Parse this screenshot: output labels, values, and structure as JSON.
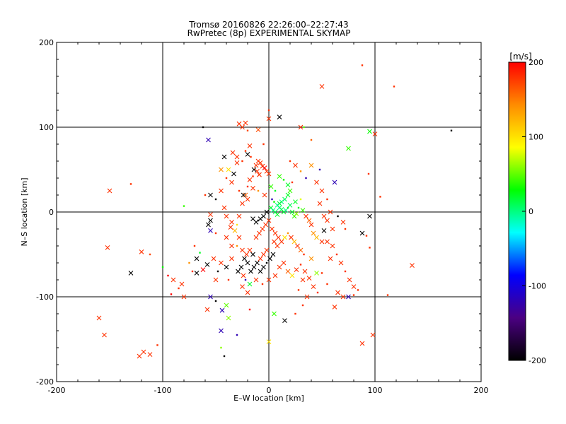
{
  "chart_data": {
    "type": "scatter",
    "title": "Tromsø 20160826 22:26:00–22:27:43",
    "subtitle": "RwPretec (8p) EXPERIMENTAL SKYMAP",
    "xlabel": "E–W location [km]",
    "ylabel": "N–S location [km]",
    "xlim": [
      -200,
      200
    ],
    "ylim": [
      -200,
      200
    ],
    "xticks": [
      -200,
      -100,
      0,
      100,
      200
    ],
    "yticks": [
      -200,
      -100,
      0,
      100,
      200
    ],
    "grid": true,
    "colorbar": {
      "label": "[m/s]",
      "range": [
        -200,
        200
      ],
      "ticks": [
        200,
        100,
        0,
        -100,
        -200
      ],
      "colors": [
        "#000000",
        "#4b0082",
        "#0000ff",
        "#00ffff",
        "#00ff00",
        "#ffff00",
        "#ff8c00",
        "#ff0000"
      ]
    },
    "points": [
      [
        -160,
        -125,
        180,
        "x"
      ],
      [
        -155,
        -145,
        180,
        "x"
      ],
      [
        -150,
        25,
        180,
        "x"
      ],
      [
        -152,
        -42,
        180,
        "x"
      ],
      [
        -130,
        33,
        180,
        "d"
      ],
      [
        -130,
        -72,
        -200,
        "x"
      ],
      [
        -120,
        -47,
        180,
        "x"
      ],
      [
        -118,
        -165,
        180,
        "x"
      ],
      [
        -112,
        -168,
        180,
        "x"
      ],
      [
        -122,
        -170,
        180,
        "x"
      ],
      [
        -105,
        -157,
        180,
        "d"
      ],
      [
        -112,
        -50,
        170,
        "d"
      ],
      [
        -100,
        -65,
        30,
        "d"
      ],
      [
        -95,
        -75,
        200,
        "d"
      ],
      [
        -92,
        -97,
        200,
        "d"
      ],
      [
        -82,
        -85,
        180,
        "x"
      ],
      [
        -80,
        7,
        40,
        "d"
      ],
      [
        -75,
        -60,
        140,
        "d"
      ],
      [
        -72,
        -70,
        180,
        "d"
      ],
      [
        -68,
        -72,
        -200,
        "x"
      ],
      [
        -62,
        100,
        -200,
        "d"
      ],
      [
        -57,
        85,
        -120,
        "x"
      ],
      [
        -55,
        -100,
        -120,
        "x"
      ],
      [
        -50,
        -80,
        180,
        "x"
      ],
      [
        -45,
        -140,
        -120,
        "x"
      ],
      [
        -45,
        -160,
        60,
        "d"
      ],
      [
        -44,
        -116,
        -120,
        "x"
      ],
      [
        -42,
        65,
        -200,
        "x"
      ],
      [
        -40,
        -110,
        50,
        "x"
      ],
      [
        -38,
        -80,
        180,
        "d"
      ],
      [
        -35,
        35,
        180,
        "x"
      ],
      [
        -30,
        -145,
        -120,
        "d"
      ],
      [
        -28,
        104,
        180,
        "x"
      ],
      [
        -25,
        100,
        180,
        "x"
      ],
      [
        -22,
        105,
        180,
        "x"
      ],
      [
        -20,
        96,
        170,
        "d"
      ],
      [
        -10,
        97,
        170,
        "x"
      ],
      [
        -5,
        80,
        180,
        "d"
      ],
      [
        0,
        110,
        180,
        "x"
      ],
      [
        10,
        112,
        -200,
        "x"
      ],
      [
        0,
        120,
        180,
        "d"
      ],
      [
        30,
        100,
        180,
        "x"
      ],
      [
        33,
        100,
        50,
        "d"
      ],
      [
        40,
        85,
        160,
        "d"
      ],
      [
        50,
        148,
        180,
        "x"
      ],
      [
        88,
        173,
        180,
        "d"
      ],
      [
        95,
        95,
        30,
        "x"
      ],
      [
        100,
        92,
        180,
        "x"
      ],
      [
        118,
        148,
        180,
        "d"
      ],
      [
        172,
        96,
        -200,
        "d"
      ],
      [
        40,
        55,
        140,
        "x"
      ],
      [
        48,
        50,
        -120,
        "d"
      ],
      [
        62,
        35,
        -120,
        "x"
      ],
      [
        75,
        75,
        40,
        "x"
      ],
      [
        94,
        45,
        180,
        "d"
      ],
      [
        105,
        18,
        180,
        "d"
      ],
      [
        95,
        -5,
        -200,
        "x"
      ],
      [
        92,
        -28,
        180,
        "d"
      ],
      [
        88,
        -25,
        -200,
        "x"
      ],
      [
        95,
        -42,
        180,
        "d"
      ],
      [
        135,
        -63,
        180,
        "x"
      ],
      [
        112,
        -98,
        180,
        "d"
      ],
      [
        98,
        -145,
        180,
        "x"
      ],
      [
        88,
        -155,
        180,
        "x"
      ],
      [
        70,
        -100,
        180,
        "x"
      ],
      [
        75,
        -100,
        -120,
        "x"
      ],
      [
        80,
        -98,
        180,
        "d"
      ],
      [
        62,
        -112,
        180,
        "x"
      ],
      [
        65,
        -95,
        180,
        "x"
      ],
      [
        55,
        -85,
        180,
        "d"
      ],
      [
        50,
        -72,
        180,
        "d"
      ],
      [
        58,
        -55,
        180,
        "x"
      ],
      [
        55,
        -35,
        180,
        "x"
      ],
      [
        40,
        -55,
        140,
        "x"
      ],
      [
        45,
        -72,
        60,
        "x"
      ],
      [
        32,
        -80,
        180,
        "x"
      ],
      [
        28,
        -92,
        180,
        "d"
      ],
      [
        25,
        -120,
        180,
        "d"
      ],
      [
        15,
        -128,
        -200,
        "x"
      ],
      [
        5,
        -120,
        40,
        "x"
      ],
      [
        0,
        -153,
        100,
        "x"
      ],
      [
        -18,
        -115,
        200,
        "d"
      ],
      [
        -20,
        -95,
        180,
        "x"
      ],
      [
        -22,
        -80,
        -120,
        "d"
      ],
      [
        -18,
        -85,
        20,
        "x"
      ],
      [
        -25,
        -88,
        180,
        "x"
      ],
      [
        -35,
        -55,
        180,
        "x"
      ],
      [
        -35,
        -40,
        180,
        "x"
      ],
      [
        -40,
        -30,
        180,
        "x"
      ],
      [
        -50,
        -25,
        180,
        "d"
      ],
      [
        -55,
        -22,
        -120,
        "x"
      ],
      [
        -55,
        -10,
        -200,
        "x"
      ],
      [
        -57,
        -15,
        -200,
        "x"
      ],
      [
        -55,
        -3,
        180,
        "x"
      ],
      [
        -60,
        20,
        180,
        "d"
      ],
      [
        -55,
        20,
        -200,
        "x"
      ],
      [
        -50,
        15,
        -200,
        "d"
      ],
      [
        -45,
        25,
        180,
        "x"
      ],
      [
        -42,
        5,
        180,
        "x"
      ],
      [
        -40,
        -5,
        180,
        "x"
      ],
      [
        -35,
        -12,
        180,
        "x"
      ],
      [
        -30,
        -15,
        100,
        "d"
      ],
      [
        -28,
        -5,
        180,
        "x"
      ],
      [
        -25,
        10,
        180,
        "x"
      ],
      [
        -22,
        20,
        160,
        "x"
      ],
      [
        -20,
        30,
        180,
        "d"
      ],
      [
        -18,
        38,
        180,
        "x"
      ],
      [
        -14,
        50,
        -200,
        "x"
      ],
      [
        -12,
        55,
        180,
        "x"
      ],
      [
        -10,
        60,
        180,
        "x"
      ],
      [
        -8,
        58,
        180,
        "x"
      ],
      [
        -6,
        54,
        180,
        "x"
      ],
      [
        -4,
        52,
        200,
        "x"
      ],
      [
        -2,
        48,
        180,
        "x"
      ],
      [
        0,
        45,
        180,
        "x"
      ],
      [
        -11,
        48,
        180,
        "x"
      ],
      [
        -9,
        44,
        180,
        "x"
      ],
      [
        -15,
        42,
        180,
        "d"
      ],
      [
        -17,
        65,
        180,
        "d"
      ],
      [
        -20,
        68,
        -200,
        "x"
      ],
      [
        -25,
        60,
        180,
        "d"
      ],
      [
        -30,
        58,
        180,
        "x"
      ],
      [
        -33,
        45,
        -200,
        "x"
      ],
      [
        -38,
        50,
        100,
        "x"
      ],
      [
        -40,
        40,
        180,
        "d"
      ],
      [
        -45,
        50,
        140,
        "x"
      ],
      [
        10,
        42,
        40,
        "x"
      ],
      [
        14,
        38,
        30,
        "d"
      ],
      [
        18,
        32,
        20,
        "x"
      ],
      [
        22,
        35,
        180,
        "d"
      ],
      [
        20,
        25,
        40,
        "x"
      ],
      [
        18,
        20,
        20,
        "x"
      ],
      [
        15,
        15,
        10,
        "x"
      ],
      [
        12,
        12,
        0,
        "x"
      ],
      [
        10,
        10,
        20,
        "x"
      ],
      [
        8,
        8,
        0,
        "x"
      ],
      [
        5,
        12,
        30,
        "d"
      ],
      [
        3,
        15,
        -120,
        "d"
      ],
      [
        2,
        5,
        20,
        "x"
      ],
      [
        4,
        2,
        0,
        "x"
      ],
      [
        6,
        0,
        10,
        "x"
      ],
      [
        8,
        -3,
        20,
        "x"
      ],
      [
        10,
        5,
        0,
        "x"
      ],
      [
        12,
        3,
        10,
        "x"
      ],
      [
        14,
        0,
        20,
        "x"
      ],
      [
        16,
        2,
        0,
        "x"
      ],
      [
        18,
        5,
        20,
        "d"
      ],
      [
        20,
        8,
        10,
        "x"
      ],
      [
        22,
        0,
        20,
        "x"
      ],
      [
        24,
        -5,
        40,
        "x"
      ],
      [
        26,
        -2,
        60,
        "x"
      ],
      [
        28,
        5,
        20,
        "d"
      ],
      [
        25,
        12,
        20,
        "x"
      ],
      [
        30,
        15,
        80,
        "d"
      ],
      [
        32,
        2,
        40,
        "x"
      ],
      [
        35,
        -5,
        180,
        "x"
      ],
      [
        38,
        -10,
        160,
        "x"
      ],
      [
        40,
        -15,
        180,
        "x"
      ],
      [
        42,
        -25,
        140,
        "x"
      ],
      [
        45,
        -30,
        120,
        "x"
      ],
      [
        50,
        -35,
        180,
        "x"
      ],
      [
        52,
        -22,
        -200,
        "x"
      ],
      [
        60,
        -20,
        180,
        "x"
      ],
      [
        55,
        -10,
        180,
        "x"
      ],
      [
        58,
        0,
        180,
        "x"
      ],
      [
        65,
        -5,
        -200,
        "d"
      ],
      [
        70,
        -12,
        180,
        "x"
      ],
      [
        72,
        -20,
        180,
        "d"
      ],
      [
        -2,
        0,
        -200,
        "x"
      ],
      [
        -5,
        -5,
        -200,
        "x"
      ],
      [
        -8,
        -8,
        -200,
        "x"
      ],
      [
        -10,
        -10,
        -200,
        "d"
      ],
      [
        -12,
        -12,
        -200,
        "x"
      ],
      [
        -15,
        -8,
        -200,
        "x"
      ],
      [
        0,
        -10,
        180,
        "x"
      ],
      [
        -3,
        -15,
        180,
        "x"
      ],
      [
        -6,
        -20,
        180,
        "x"
      ],
      [
        -9,
        -25,
        180,
        "x"
      ],
      [
        -12,
        -30,
        180,
        "x"
      ],
      [
        3,
        -20,
        180,
        "x"
      ],
      [
        6,
        -25,
        180,
        "x"
      ],
      [
        9,
        -30,
        180,
        "x"
      ],
      [
        12,
        -35,
        180,
        "x"
      ],
      [
        15,
        -30,
        100,
        "x"
      ],
      [
        18,
        -25,
        140,
        "d"
      ],
      [
        21,
        -30,
        180,
        "x"
      ],
      [
        24,
        -35,
        120,
        "x"
      ],
      [
        27,
        -40,
        180,
        "x"
      ],
      [
        30,
        -45,
        160,
        "x"
      ],
      [
        33,
        -50,
        180,
        "d"
      ],
      [
        -2,
        -45,
        180,
        "x"
      ],
      [
        -5,
        -50,
        180,
        "x"
      ],
      [
        -8,
        -55,
        180,
        "x"
      ],
      [
        -11,
        -60,
        -200,
        "x"
      ],
      [
        -14,
        -65,
        -200,
        "x"
      ],
      [
        -17,
        -70,
        -200,
        "x"
      ],
      [
        -20,
        -60,
        -200,
        "x"
      ],
      [
        -23,
        -55,
        -200,
        "x"
      ],
      [
        -26,
        -65,
        -200,
        "x"
      ],
      [
        -29,
        -70,
        -200,
        "x"
      ],
      [
        -5,
        -65,
        -200,
        "x"
      ],
      [
        -8,
        -70,
        -200,
        "x"
      ],
      [
        -2,
        -60,
        -200,
        "d"
      ],
      [
        1,
        -55,
        -200,
        "x"
      ],
      [
        4,
        -50,
        -200,
        "x"
      ],
      [
        -15,
        -50,
        -200,
        "x"
      ],
      [
        -18,
        -45,
        180,
        "x"
      ],
      [
        -21,
        -50,
        180,
        "x"
      ],
      [
        -24,
        -75,
        180,
        "x"
      ],
      [
        -12,
        -80,
        180,
        "x"
      ],
      [
        -6,
        -85,
        180,
        "d"
      ],
      [
        0,
        -80,
        180,
        "x"
      ],
      [
        6,
        -75,
        180,
        "x"
      ],
      [
        10,
        -65,
        180,
        "x"
      ],
      [
        14,
        -60,
        180,
        "x"
      ],
      [
        18,
        -70,
        160,
        "x"
      ],
      [
        22,
        -75,
        100,
        "x"
      ],
      [
        26,
        -68,
        180,
        "x"
      ],
      [
        30,
        -62,
        180,
        "d"
      ],
      [
        34,
        -70,
        180,
        "x"
      ],
      [
        38,
        -78,
        180,
        "x"
      ],
      [
        -40,
        -65,
        -200,
        "x"
      ],
      [
        -45,
        -60,
        180,
        "x"
      ],
      [
        -48,
        -70,
        -200,
        "d"
      ],
      [
        -52,
        -55,
        180,
        "x"
      ],
      [
        -58,
        -62,
        -200,
        "x"
      ],
      [
        -62,
        -68,
        200,
        "x"
      ],
      [
        -65,
        -48,
        20,
        "d"
      ],
      [
        -68,
        -55,
        -200,
        "x"
      ],
      [
        -70,
        -40,
        180,
        "d"
      ],
      [
        -28,
        -30,
        180,
        "x"
      ],
      [
        -32,
        -22,
        120,
        "x"
      ],
      [
        -36,
        -18,
        180,
        "x"
      ],
      [
        -30,
        -40,
        140,
        "d"
      ],
      [
        -25,
        -45,
        180,
        "x"
      ],
      [
        5,
        -35,
        180,
        "x"
      ],
      [
        8,
        -40,
        180,
        "x"
      ],
      [
        -20,
        15,
        180,
        "x"
      ],
      [
        -24,
        20,
        -200,
        "x"
      ],
      [
        -28,
        25,
        180,
        "d"
      ],
      [
        -15,
        28,
        180,
        "x"
      ],
      [
        -10,
        25,
        140,
        "d"
      ],
      [
        2,
        30,
        40,
        "x"
      ],
      [
        6,
        25,
        20,
        "d"
      ],
      [
        -4,
        20,
        180,
        "x"
      ],
      [
        -30,
        65,
        180,
        "x"
      ],
      [
        -34,
        70,
        180,
        "x"
      ],
      [
        -22,
        72,
        180,
        "d"
      ],
      [
        -18,
        78,
        180,
        "x"
      ],
      [
        20,
        60,
        180,
        "d"
      ],
      [
        25,
        55,
        180,
        "x"
      ],
      [
        30,
        48,
        140,
        "d"
      ],
      [
        35,
        40,
        -120,
        "d"
      ],
      [
        45,
        35,
        180,
        "x"
      ],
      [
        50,
        25,
        180,
        "x"
      ],
      [
        55,
        15,
        180,
        "d"
      ],
      [
        48,
        10,
        180,
        "x"
      ],
      [
        52,
        -5,
        180,
        "x"
      ],
      [
        60,
        -40,
        180,
        "x"
      ],
      [
        64,
        -50,
        180,
        "d"
      ],
      [
        68,
        -60,
        180,
        "x"
      ],
      [
        72,
        -70,
        180,
        "d"
      ],
      [
        76,
        -80,
        180,
        "x"
      ],
      [
        80,
        -88,
        180,
        "x"
      ],
      [
        84,
        -92,
        180,
        "d"
      ],
      [
        42,
        -88,
        180,
        "x"
      ],
      [
        46,
        -95,
        180,
        "d"
      ],
      [
        36,
        -100,
        180,
        "x"
      ],
      [
        32,
        -110,
        180,
        "d"
      ],
      [
        -50,
        -105,
        -200,
        "d"
      ],
      [
        -58,
        -115,
        180,
        "x"
      ],
      [
        -38,
        -125,
        60,
        "x"
      ],
      [
        -42,
        -170,
        -200,
        "d"
      ],
      [
        -80,
        -100,
        180,
        "x"
      ],
      [
        -85,
        -90,
        180,
        "d"
      ],
      [
        -90,
        -80,
        180,
        "x"
      ]
    ]
  }
}
